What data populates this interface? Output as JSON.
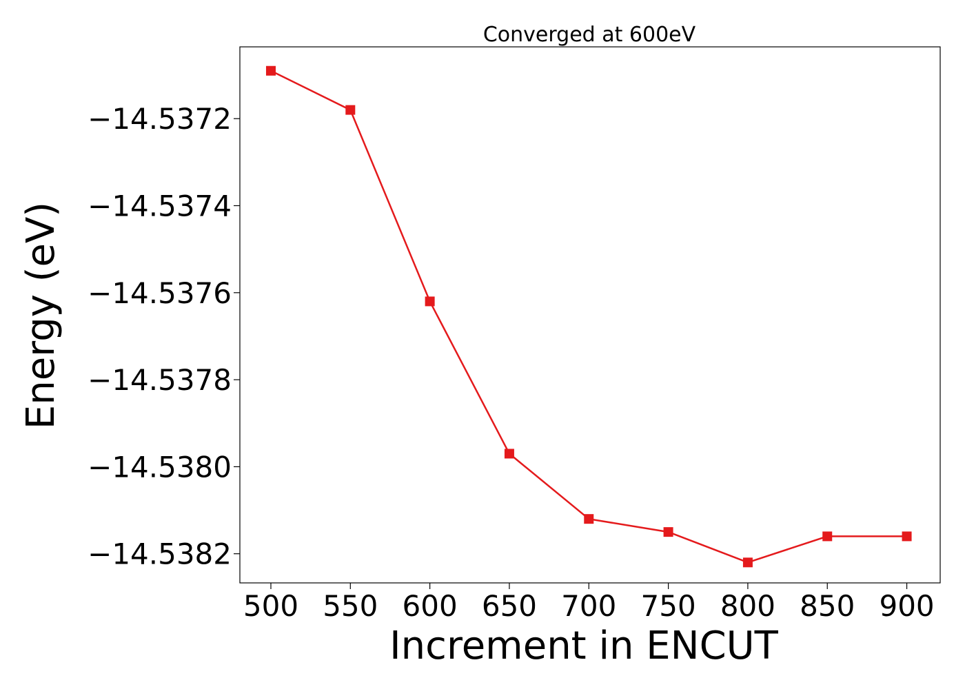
{
  "chart_data": {
    "type": "line",
    "title": "Converged at 600eV",
    "xlabel": "Increment in ENCUT",
    "ylabel": "Energy (eV)",
    "x": [
      500,
      550,
      600,
      650,
      700,
      750,
      800,
      850,
      900
    ],
    "series": [
      {
        "values": [
          -14.53709,
          -14.53718,
          -14.53762,
          -14.53797,
          -14.53812,
          -14.53815,
          -14.53822,
          -14.53816,
          -14.53816
        ],
        "color": "#e41a1c",
        "marker": "square"
      }
    ],
    "xticks": [
      500,
      550,
      600,
      650,
      700,
      750,
      800,
      850,
      900
    ],
    "xtick_labels": [
      "500",
      "550",
      "600",
      "650",
      "700",
      "750",
      "800",
      "850",
      "900"
    ],
    "yticks": [
      -14.5372,
      -14.5374,
      -14.5376,
      -14.5378,
      -14.538,
      -14.5382
    ],
    "ytick_labels": [
      "−14.5372",
      "−14.5374",
      "−14.5376",
      "−14.5378",
      "−14.5380",
      "−14.5382"
    ],
    "xlim": [
      480.5,
      921.0
    ],
    "ylim": [
      -14.538267,
      -14.537035
    ],
    "grid": false,
    "legend": "none"
  }
}
